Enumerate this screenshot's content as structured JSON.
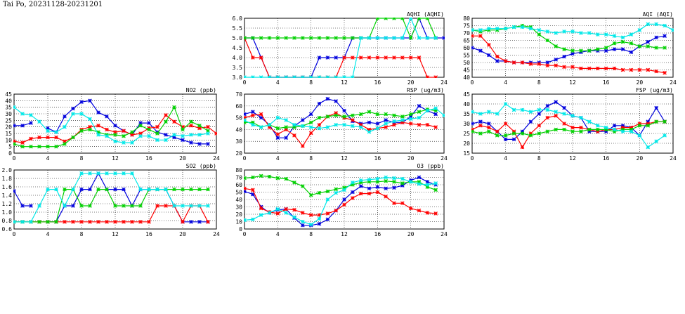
{
  "page_title": "Tai Po, 20231128-20231201",
  "series_colors": [
    "#0000dd",
    "#ff0000",
    "#00d000",
    "#00e8e8"
  ],
  "chart_data": [
    {
      "id": "aqhi",
      "type": "line",
      "title": "AQHI (AQHI)",
      "xlim": [
        0,
        24
      ],
      "ylim": [
        3.0,
        6.0
      ],
      "xticks": [
        0,
        4,
        8,
        12,
        16,
        20,
        24
      ],
      "yticks": [
        "3.0",
        "3.5",
        "4.0",
        "4.5",
        "5.0",
        "5.5",
        "6.0"
      ],
      "grid": true,
      "series": [
        {
          "color": "#0000dd",
          "values": [
            5,
            5,
            4,
            3,
            3,
            3,
            3,
            3,
            3,
            4,
            4,
            4,
            4,
            5,
            5,
            5,
            5,
            5,
            5,
            5,
            5,
            6,
            5,
            5,
            5
          ]
        },
        {
          "color": "#ff0000",
          "values": [
            5,
            4,
            4,
            3,
            3,
            3,
            3,
            3,
            3,
            3,
            3,
            3,
            4,
            4,
            4,
            4,
            4,
            4,
            4,
            4,
            4,
            4,
            3,
            3,
            null
          ]
        },
        {
          "color": "#00d000",
          "values": [
            5,
            5,
            5,
            5,
            5,
            5,
            5,
            5,
            5,
            5,
            5,
            5,
            5,
            5,
            5,
            5,
            6,
            6,
            6,
            6,
            5,
            6,
            6,
            5,
            null
          ]
        },
        {
          "color": "#00e8e8",
          "values": [
            3,
            3,
            3,
            3,
            3,
            3,
            3,
            3,
            3,
            3,
            3,
            3,
            3,
            3,
            5,
            5,
            5,
            5,
            5,
            5,
            6,
            5,
            5,
            5,
            null
          ]
        }
      ]
    },
    {
      "id": "aqi",
      "type": "line",
      "title": "AQI (AQI)",
      "xlim": [
        0,
        24
      ],
      "ylim": [
        40,
        80
      ],
      "xticks": [
        0,
        4,
        8,
        12,
        16,
        20,
        24
      ],
      "yticks": [
        "40",
        "45",
        "50",
        "55",
        "60",
        "65",
        "70",
        "75",
        "80"
      ],
      "grid": true,
      "series": [
        {
          "color": "#0000dd",
          "values": [
            60,
            58,
            55,
            51,
            51,
            50,
            50,
            50,
            50,
            50,
            52,
            54,
            56,
            57,
            58,
            58,
            58,
            59,
            59,
            57,
            61,
            64,
            67,
            68,
            null
          ]
        },
        {
          "color": "#ff0000",
          "values": [
            68,
            68,
            62,
            54,
            51,
            50,
            50,
            49,
            49,
            48,
            48,
            47,
            47,
            46,
            46,
            46,
            46,
            46,
            45,
            45,
            45,
            45,
            44,
            43,
            null
          ]
        },
        {
          "color": "#00d000",
          "values": [
            72,
            71,
            72,
            72,
            73,
            74,
            75,
            74,
            69,
            65,
            61,
            59,
            58,
            58,
            58,
            59,
            60,
            63,
            64,
            63,
            61,
            61,
            60,
            60,
            null
          ]
        },
        {
          "color": "#00e8e8",
          "values": [
            72,
            72,
            73,
            73,
            73,
            74,
            74,
            73,
            72,
            71,
            70,
            71,
            71,
            70,
            70,
            69,
            69,
            68,
            67,
            69,
            72,
            76,
            76,
            75,
            72
          ]
        }
      ]
    },
    {
      "id": "no2",
      "type": "line",
      "title": "NO2 (ppb)",
      "xlim": [
        0,
        24
      ],
      "ylim": [
        0,
        45
      ],
      "xticks": [
        0,
        4,
        8,
        12,
        16,
        20,
        24
      ],
      "yticks": [
        "0",
        "5",
        "10",
        "15",
        "20",
        "25",
        "30",
        "35",
        "40",
        "45"
      ],
      "grid": true,
      "series": [
        {
          "color": "#0000dd",
          "values": [
            21,
            21,
            23,
            null,
            19,
            16,
            28,
            34,
            39,
            40,
            31,
            28,
            21,
            17,
            14,
            23,
            23,
            16,
            14,
            12,
            10,
            8,
            7,
            7,
            null
          ]
        },
        {
          "color": "#ff0000",
          "values": [
            9,
            8,
            11,
            12,
            12,
            12,
            9,
            12,
            18,
            20,
            21,
            18,
            16,
            17,
            14,
            15,
            19,
            20,
            29,
            24,
            20,
            21,
            19,
            20,
            15
          ]
        },
        {
          "color": "#00d000",
          "values": [
            7,
            5,
            5,
            5,
            5,
            5,
            7,
            12,
            17,
            18,
            16,
            14,
            14,
            13,
            16,
            21,
            18,
            15,
            24,
            35,
            18,
            24,
            21,
            17,
            null
          ]
        },
        {
          "color": "#00e8e8",
          "values": [
            35,
            30,
            29,
            24,
            17,
            16,
            20,
            30,
            30,
            26,
            14,
            13,
            9,
            8,
            8,
            13,
            13,
            10,
            10,
            14,
            13,
            14,
            14,
            15,
            null
          ]
        }
      ]
    },
    {
      "id": "rsp",
      "type": "line",
      "title": "RSP (ug/m3)",
      "xlim": [
        0,
        24
      ],
      "ylim": [
        20,
        70
      ],
      "xticks": [
        0,
        4,
        8,
        12,
        16,
        20,
        24
      ],
      "yticks": [
        "20",
        "30",
        "40",
        "50",
        "60",
        "70"
      ],
      "grid": true,
      "series": [
        {
          "color": "#0000dd",
          "values": [
            53,
            55,
            50,
            44,
            33,
            33,
            43,
            48,
            53,
            62,
            66,
            64,
            56,
            47,
            45,
            46,
            45,
            48,
            46,
            46,
            51,
            60,
            56,
            53,
            null
          ]
        },
        {
          "color": "#ff0000",
          "values": [
            50,
            52,
            53,
            42,
            36,
            40,
            35,
            26,
            37,
            44,
            51,
            54,
            50,
            48,
            44,
            40,
            41,
            42,
            44,
            46,
            45,
            44,
            44,
            42,
            null
          ]
        },
        {
          "color": "#00d000",
          "values": [
            46,
            46,
            42,
            44,
            41,
            42,
            42,
            43,
            46,
            50,
            51,
            52,
            51,
            52,
            53,
            55,
            53,
            53,
            52,
            51,
            53,
            55,
            57,
            56,
            null
          ]
        },
        {
          "color": "#00e8e8",
          "values": [
            48,
            44,
            42,
            44,
            50,
            48,
            44,
            43,
            42,
            41,
            42,
            44,
            44,
            43,
            42,
            38,
            41,
            45,
            47,
            48,
            49,
            50,
            56,
            58,
            52
          ]
        }
      ]
    },
    {
      "id": "fsp",
      "type": "line",
      "title": "FSP (ug/m3)",
      "xlim": [
        0,
        24
      ],
      "ylim": [
        15,
        45
      ],
      "xticks": [
        0,
        4,
        8,
        12,
        16,
        20,
        24
      ],
      "yticks": [
        "15",
        "20",
        "25",
        "30",
        "35",
        "40",
        "45"
      ],
      "grid": true,
      "series": [
        {
          "color": "#0000dd",
          "values": [
            30,
            31,
            30,
            26,
            22,
            22,
            26,
            31,
            35,
            39,
            41,
            38,
            34,
            33,
            26,
            26,
            26,
            29,
            29,
            28,
            24,
            31,
            38,
            31,
            null
          ]
        },
        {
          "color": "#ff0000",
          "values": [
            27,
            29,
            28,
            26,
            30,
            26,
            18,
            25,
            29,
            33,
            34,
            30,
            28,
            28,
            27,
            26,
            27,
            27,
            28,
            28,
            30,
            30,
            31,
            31,
            null
          ]
        },
        {
          "color": "#00d000",
          "values": [
            26,
            25,
            26,
            24,
            24,
            25,
            25,
            24,
            25,
            26,
            27,
            27,
            26,
            26,
            27,
            27,
            27,
            26,
            27,
            27,
            29,
            29,
            31,
            31,
            null
          ]
        },
        {
          "color": "#00e8e8",
          "values": [
            36,
            35,
            36,
            35,
            40,
            37,
            37,
            36,
            37,
            37,
            36,
            35,
            34,
            33,
            31,
            29,
            28,
            27,
            26,
            26,
            24,
            18,
            21,
            24,
            null
          ]
        }
      ]
    },
    {
      "id": "so2",
      "type": "line",
      "title": "SO2 (ppb)",
      "xlim": [
        0,
        24
      ],
      "ylim": [
        0.6,
        2.0
      ],
      "xticks": [
        0,
        4,
        8,
        12,
        16,
        20,
        24
      ],
      "yticks": [
        "0.6",
        "0.8",
        "1.0",
        "1.2",
        "1.4",
        "1.6",
        "1.8",
        "2.0"
      ],
      "grid": true,
      "series": [
        {
          "color": "#0000dd",
          "values": [
            1.5,
            1.15,
            1.15,
            null,
            0.77,
            0.77,
            1.15,
            1.15,
            1.54,
            1.54,
            1.92,
            1.54,
            1.54,
            1.54,
            1.15,
            1.54,
            1.54,
            1.54,
            1.54,
            1.15,
            0.77,
            0.77,
            0.77,
            0.77,
            null
          ]
        },
        {
          "color": "#ff0000",
          "values": [
            0.77,
            0.77,
            0.77,
            0.77,
            0.77,
            0.77,
            0.77,
            0.77,
            0.77,
            0.77,
            0.77,
            0.77,
            0.77,
            0.77,
            0.77,
            0.77,
            0.77,
            1.15,
            1.15,
            1.15,
            0.77,
            1.15,
            1.15,
            0.77,
            null
          ]
        },
        {
          "color": "#00d000",
          "values": [
            0.77,
            0.77,
            0.77,
            0.77,
            0.77,
            0.77,
            1.54,
            1.54,
            1.15,
            1.15,
            1.54,
            1.54,
            1.15,
            1.15,
            1.15,
            1.15,
            1.54,
            1.54,
            1.54,
            1.54,
            1.54,
            1.54,
            1.54,
            1.54,
            null
          ]
        },
        {
          "color": "#00e8e8",
          "values": [
            0.77,
            0.77,
            0.77,
            1.15,
            1.54,
            1.54,
            1.15,
            1.54,
            1.92,
            1.92,
            1.92,
            1.92,
            1.92,
            1.92,
            1.92,
            1.54,
            1.54,
            1.54,
            1.54,
            1.15,
            1.15,
            1.15,
            1.15,
            1.15,
            null
          ]
        }
      ]
    },
    {
      "id": "o3",
      "type": "line",
      "title": "O3 (ppb)",
      "xlim": [
        0,
        24
      ],
      "ylim": [
        0,
        80
      ],
      "xticks": [
        0,
        4,
        8,
        12,
        16,
        20,
        24
      ],
      "yticks": [
        "0",
        "10",
        "20",
        "30",
        "40",
        "50",
        "60",
        "70",
        "80"
      ],
      "grid": true,
      "series": [
        {
          "color": "#0000dd",
          "values": [
            51,
            47,
            30,
            22,
            26,
            27,
            15,
            5,
            5,
            7,
            13,
            25,
            40,
            50,
            58,
            55,
            57,
            55,
            56,
            59,
            66,
            70,
            64,
            60,
            null
          ]
        },
        {
          "color": "#ff0000",
          "values": [
            55,
            53,
            28,
            23,
            21,
            27,
            26,
            22,
            19,
            19,
            21,
            25,
            33,
            42,
            48,
            48,
            50,
            44,
            35,
            35,
            28,
            25,
            22,
            21,
            null
          ]
        },
        {
          "color": "#00d000",
          "values": [
            69,
            70,
            72,
            71,
            69,
            68,
            63,
            58,
            46,
            49,
            51,
            54,
            56,
            60,
            63,
            64,
            64,
            65,
            64,
            62,
            64,
            64,
            57,
            53,
            null
          ]
        },
        {
          "color": "#00e8e8",
          "values": [
            12,
            13,
            19,
            22,
            27,
            22,
            16,
            10,
            6,
            14,
            40,
            49,
            53,
            63,
            66,
            67,
            68,
            70,
            69,
            68,
            64,
            61,
            60,
            62,
            null
          ]
        }
      ]
    }
  ]
}
